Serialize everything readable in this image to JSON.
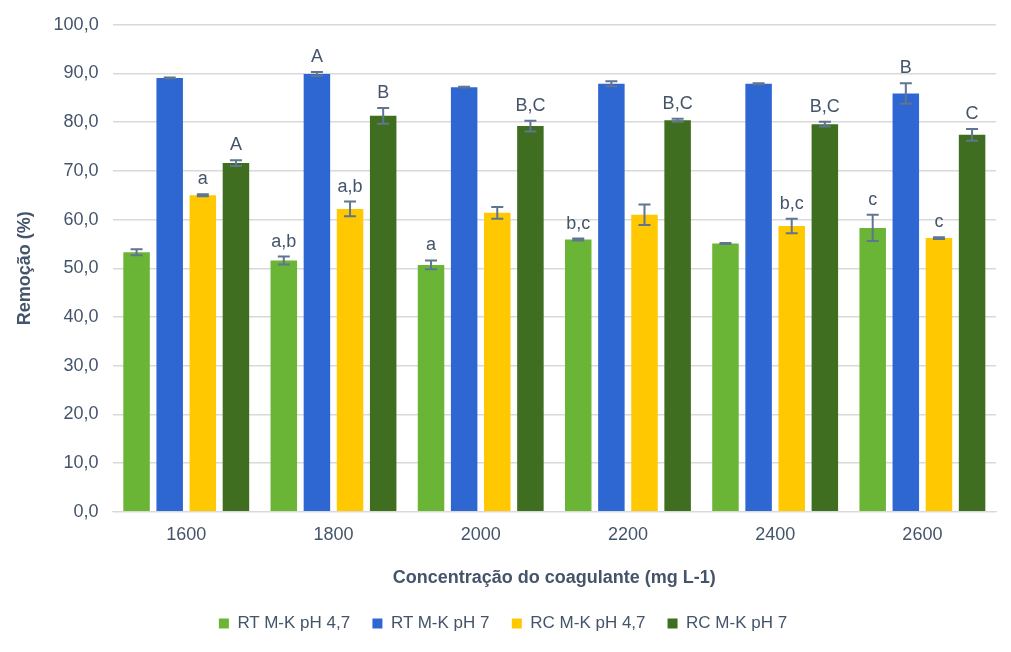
{
  "chart_data": {
    "type": "bar",
    "xlabel": "Concentração do coagulante (mg L-1)",
    "ylabel": "Remoção (%)",
    "categories": [
      "1600",
      "1800",
      "2000",
      "2200",
      "2400",
      "2600"
    ],
    "series": [
      {
        "name": "RT M-K pH 4,7",
        "color": "#6ab535",
        "values": [
          53.3,
          51.6,
          50.7,
          55.9,
          55.1,
          58.3
        ],
        "errors": [
          0.6,
          0.8,
          0.9,
          0.2,
          0.1,
          2.7
        ],
        "value_labels": [
          null,
          "a,b",
          "a",
          "b,c",
          null,
          "c"
        ]
      },
      {
        "name": "RT M-K pH 7",
        "color": "#2e67d2",
        "values": [
          89.1,
          89.9,
          87.2,
          87.9,
          87.9,
          85.9
        ],
        "errors": [
          0.1,
          0.4,
          0.1,
          0.5,
          0.1,
          2.1
        ],
        "value_labels": [
          null,
          "A",
          null,
          null,
          null,
          "B"
        ]
      },
      {
        "name": "RC M-K pH 4,7",
        "color": "#ffc800",
        "values": [
          65.0,
          62.2,
          61.4,
          61.0,
          58.7,
          56.2
        ],
        "errors": [
          0.2,
          1.5,
          1.2,
          2.1,
          1.5,
          0.2
        ],
        "value_labels": [
          "a",
          "a,b",
          null,
          null,
          "b,c",
          "c"
        ]
      },
      {
        "name": "RC M-K pH 7",
        "color": "#3f6e20",
        "values": [
          71.6,
          81.3,
          79.2,
          80.4,
          79.6,
          77.4
        ],
        "errors": [
          0.6,
          1.6,
          1.1,
          0.3,
          0.5,
          1.2
        ],
        "value_labels": [
          "A",
          "B",
          "B,C",
          "B,C",
          "B,C",
          "C"
        ]
      }
    ],
    "ylim": [
      0,
      100
    ],
    "yticks": [
      {
        "value": 0,
        "label": "0,0"
      },
      {
        "value": 10,
        "label": "10,0"
      },
      {
        "value": 20,
        "label": "20,0"
      },
      {
        "value": 30,
        "label": "30,0"
      },
      {
        "value": 40,
        "label": "40,0"
      },
      {
        "value": 50,
        "label": "50,0"
      },
      {
        "value": 60,
        "label": "60,0"
      },
      {
        "value": 70,
        "label": "70,0"
      },
      {
        "value": 80,
        "label": "80,0"
      },
      {
        "value": 90,
        "label": "90,0"
      },
      {
        "value": 100,
        "label": "100,0"
      }
    ],
    "grid": "y",
    "legend": "bottom"
  }
}
